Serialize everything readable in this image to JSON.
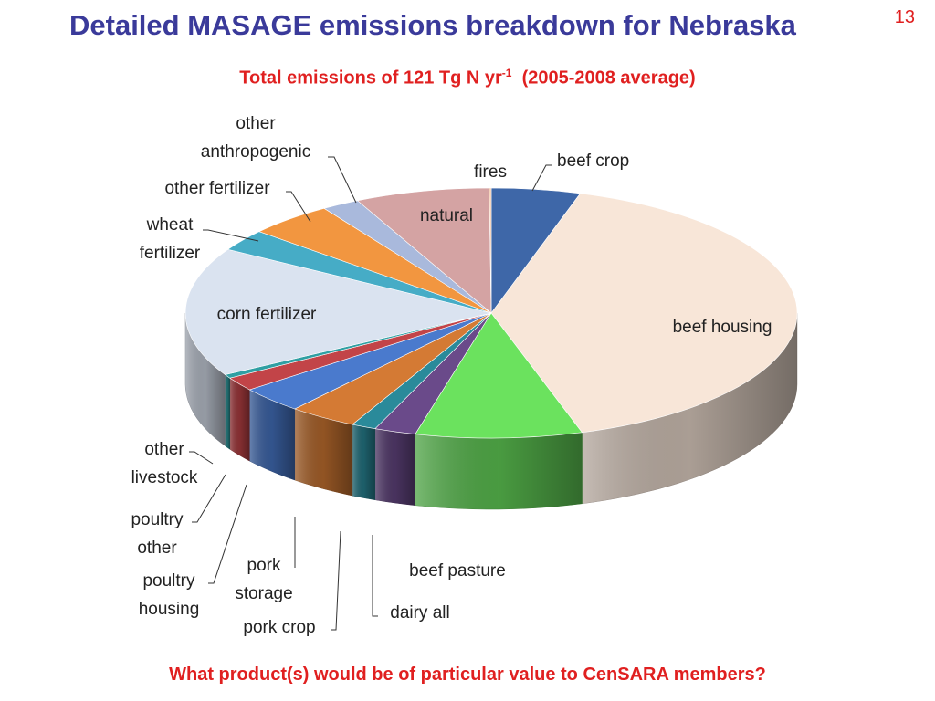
{
  "slide": {
    "title": "Detailed MASAGE emissions breakdown for Nebraska",
    "number": "13",
    "subtitle_main": "Total emissions of 121 Tg N yr",
    "subtitle_sup": "-1",
    "subtitle_rest": "  (2005-2008 average)",
    "footer_question": "What product(s) would be of particular value to CenSARA members?"
  },
  "chart_data": {
    "type": "pie",
    "style": "3d",
    "title": "Total emissions of 121 Tg N yr-1 (2005-2008 average)",
    "categories": [
      "beef crop",
      "beef housing",
      "beef pasture",
      "dairy all",
      "pork crop",
      "pork storage",
      "poultry housing",
      "poultry other",
      "other livestock",
      "corn fertilizer",
      "wheat fertilizer",
      "other fertilizer",
      "other anthropogenic",
      "natural",
      "fires"
    ],
    "values": [
      4.7,
      40.5,
      8.8,
      2.2,
      1.3,
      3.6,
      3.4,
      1.8,
      0.5,
      16.7,
      2.8,
      4.5,
      2.0,
      7.1,
      0.1
    ],
    "colors": [
      "#3e67a8",
      "#f8e6d8",
      "#6be25e",
      "#6a4a8a",
      "#2a8a9a",
      "#d47a34",
      "#4a7acd",
      "#c24448",
      "#2f9fa3",
      "#dae3f0",
      "#46acc6",
      "#f29640",
      "#a9b9dc",
      "#d4a3a3",
      "#f2c4a4"
    ],
    "legend": "none"
  }
}
